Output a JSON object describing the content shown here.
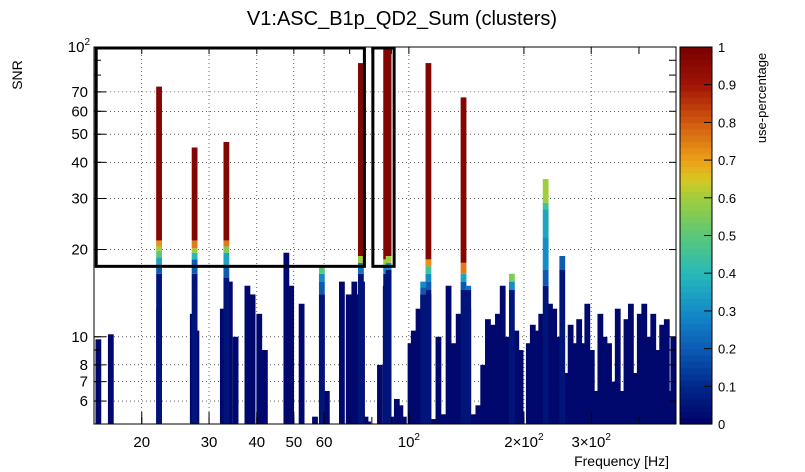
{
  "chart_data": {
    "type": "bar",
    "title": "V1:ASC_B1p_QD2_Sum (clusters)",
    "xlabel": "Frequency [Hz]",
    "ylabel": "SNR",
    "colorbar_label": "use-percentage",
    "x_scale": "log",
    "y_scale": "log",
    "xlim": [
      15,
      500
    ],
    "ylim": [
      5,
      100
    ],
    "grid": true,
    "x_ticks": [
      {
        "value": 20,
        "label": "20"
      },
      {
        "value": 30,
        "label": "30"
      },
      {
        "value": 40,
        "label": "40"
      },
      {
        "value": 50,
        "label": "50"
      },
      {
        "value": 60,
        "label": "60"
      },
      {
        "value": 100,
        "label": "10",
        "exp": "2"
      },
      {
        "value": 200,
        "label": "2×10",
        "exp": "2"
      },
      {
        "value": 300,
        "label": "3×10",
        "exp": "2"
      }
    ],
    "y_ticks": [
      {
        "value": 6,
        "label": "6"
      },
      {
        "value": 7,
        "label": "7"
      },
      {
        "value": 8,
        "label": "8"
      },
      {
        "value": 10,
        "label": "10"
      },
      {
        "value": 20,
        "label": "20"
      },
      {
        "value": 30,
        "label": "30"
      },
      {
        "value": 40,
        "label": "40"
      },
      {
        "value": 50,
        "label": "50"
      },
      {
        "value": 60,
        "label": "60"
      },
      {
        "value": 70,
        "label": "70"
      },
      {
        "value": 100,
        "label": "10",
        "exp": "2"
      }
    ],
    "colorbar": {
      "range": [
        0,
        1
      ],
      "ticks": [
        "0",
        "0.1",
        "0.2",
        "0.3",
        "0.4",
        "0.5",
        "0.6",
        "0.7",
        "0.8",
        "0.9",
        "1"
      ]
    },
    "highlight_boxes": [
      {
        "x": [
          15.2,
          76.5
        ],
        "y": [
          17.5,
          100
        ]
      },
      {
        "x": [
          80.5,
          91.5
        ],
        "y": [
          17.5,
          100
        ]
      }
    ],
    "dark_bars": [
      [
        15.4,
        9.8
      ],
      [
        16.6,
        10.2
      ],
      [
        22.2,
        12.5
      ],
      [
        27.2,
        12.0
      ],
      [
        27.8,
        10.5
      ],
      [
        32.6,
        12.5
      ],
      [
        34.0,
        15.5
      ],
      [
        35.2,
        10.0
      ],
      [
        37.8,
        15.0
      ],
      [
        39.0,
        14.0
      ],
      [
        40.6,
        12.0
      ],
      [
        42.0,
        9.0
      ],
      [
        47.8,
        19.5
      ],
      [
        49.2,
        15.0
      ],
      [
        52.4,
        13.0
      ],
      [
        56.8,
        5.3
      ],
      [
        59.2,
        14.0
      ],
      [
        61.0,
        6.5
      ],
      [
        66.8,
        15.5
      ],
      [
        69.6,
        14.0
      ],
      [
        72.0,
        15.5
      ],
      [
        73.0,
        14.0
      ],
      [
        75.4,
        15.5
      ],
      [
        77.0,
        5.3
      ],
      [
        78.2,
        5.1
      ],
      [
        84.0,
        8.0
      ],
      [
        87.0,
        15.0
      ],
      [
        90.0,
        5.3
      ],
      [
        93.0,
        6.1
      ],
      [
        95.0,
        5.8
      ],
      [
        97.0,
        5.3
      ],
      [
        101.0,
        9.5
      ],
      [
        103.0,
        10.5
      ],
      [
        106.0,
        12.5
      ],
      [
        109.0,
        14.0
      ],
      [
        112.5,
        14.0
      ],
      [
        116.0,
        5.2
      ],
      [
        119.5,
        10.0
      ],
      [
        123.0,
        5.4
      ],
      [
        127.0,
        15.0
      ],
      [
        131.0,
        9.5
      ],
      [
        135.0,
        12.0
      ],
      [
        139.0,
        5.6
      ],
      [
        143.0,
        12.5
      ],
      [
        147.5,
        5.4
      ],
      [
        152.0,
        5.8
      ],
      [
        156.5,
        8.0
      ],
      [
        161.0,
        11.5
      ],
      [
        166.0,
        11.0
      ],
      [
        171.0,
        12.0
      ],
      [
        176.0,
        15.0
      ],
      [
        181.0,
        10.0
      ],
      [
        186.0,
        9.5
      ],
      [
        191.0,
        10.5
      ],
      [
        196.0,
        9.0
      ],
      [
        206.0,
        9.5
      ],
      [
        211.0,
        11.0
      ],
      [
        216.0,
        10.5
      ],
      [
        222.0,
        12.0
      ],
      [
        228.0,
        8.0
      ],
      [
        234.0,
        13.0
      ],
      [
        240.0,
        12.5
      ],
      [
        246.0,
        10.0
      ],
      [
        252.0,
        6.5
      ],
      [
        258.0,
        7.5
      ],
      [
        265.0,
        11.0
      ],
      [
        272.0,
        9.5
      ],
      [
        279.0,
        11.5
      ],
      [
        286.0,
        9.5
      ],
      [
        293.0,
        13.0
      ],
      [
        301.0,
        9.0
      ],
      [
        309.0,
        6.5
      ],
      [
        317.0,
        12.0
      ],
      [
        325.0,
        10.0
      ],
      [
        334.0,
        9.5
      ],
      [
        343.0,
        7.0
      ],
      [
        352.0,
        12.5
      ],
      [
        361.0,
        6.5
      ],
      [
        371.0,
        11.5
      ],
      [
        381.0,
        13.0
      ],
      [
        391.0,
        7.5
      ],
      [
        402.0,
        12.0
      ],
      [
        413.0,
        13.0
      ],
      [
        424.0,
        10.0
      ],
      [
        436.0,
        12.0
      ],
      [
        448.0,
        9.0
      ],
      [
        460.0,
        11.0
      ],
      [
        473.0,
        11.5
      ],
      [
        486.0,
        6.5
      ],
      [
        492.0,
        10.0
      ]
    ],
    "colored_bars": [
      {
        "x": 22.2,
        "segments": [
          [
            5,
            16.5,
            0.05
          ],
          [
            16.5,
            17.5,
            0.2
          ],
          [
            17.5,
            18.8,
            0.35
          ],
          [
            18.8,
            19.8,
            0.5
          ],
          [
            19.8,
            20.5,
            0.6
          ],
          [
            20.5,
            21.5,
            0.72
          ],
          [
            21.5,
            73,
            0.97
          ]
        ]
      },
      {
        "x": 27.5,
        "segments": [
          [
            5,
            16.5,
            0.05
          ],
          [
            16.5,
            18.5,
            0.2
          ],
          [
            18.5,
            19.5,
            0.4
          ],
          [
            19.5,
            20.2,
            0.6
          ],
          [
            20.2,
            21.5,
            0.75
          ],
          [
            21.5,
            45,
            0.97
          ]
        ]
      },
      {
        "x": 33.3,
        "segments": [
          [
            5,
            16.0,
            0.05
          ],
          [
            16.0,
            17.5,
            0.2
          ],
          [
            17.5,
            19.5,
            0.35
          ],
          [
            19.5,
            20.5,
            0.55
          ],
          [
            20.5,
            21.5,
            0.75
          ],
          [
            21.5,
            47,
            0.97
          ]
        ]
      },
      {
        "x": 59.2,
        "segments": [
          [
            5,
            14.0,
            0.05
          ],
          [
            14.0,
            15.5,
            0.2
          ],
          [
            15.5,
            16.5,
            0.3
          ],
          [
            16.5,
            17.5,
            0.5
          ]
        ]
      },
      {
        "x": 74.9,
        "segments": [
          [
            5,
            16.5,
            0.05
          ],
          [
            16.5,
            18.0,
            0.25
          ],
          [
            18.0,
            19.0,
            0.6
          ],
          [
            19.0,
            88,
            0.97
          ]
        ]
      },
      {
        "x": 87.2,
        "segments": [
          [
            5,
            16.5,
            0.05
          ],
          [
            16.5,
            17.5,
            0.3
          ],
          [
            17.5,
            18.5,
            0.6
          ],
          [
            18.5,
            100,
            0.97
          ]
        ]
      },
      {
        "x": 88.5,
        "segments": [
          [
            5,
            17.0,
            0.05
          ],
          [
            17.0,
            18.0,
            0.3
          ],
          [
            18.0,
            19.0,
            0.6
          ],
          [
            19.0,
            100,
            0.97
          ]
        ]
      },
      {
        "x": 112.5,
        "segments": [
          [
            5,
            14.5,
            0.05
          ],
          [
            14.5,
            15.5,
            0.2
          ],
          [
            15.5,
            16.5,
            0.3
          ],
          [
            16.5,
            17.5,
            0.45
          ],
          [
            17.5,
            18.5,
            0.72
          ],
          [
            18.5,
            88,
            0.97
          ]
        ]
      },
      {
        "x": 109.0,
        "segments": [
          [
            5,
            14.0,
            0.05
          ],
          [
            14.0,
            14.8,
            0.2
          ],
          [
            14.8,
            15.5,
            0.3
          ]
        ]
      },
      {
        "x": 139.0,
        "segments": [
          [
            5,
            14.5,
            0.05
          ],
          [
            14.5,
            15.5,
            0.2
          ],
          [
            15.5,
            16.5,
            0.35
          ],
          [
            16.5,
            18.0,
            0.75
          ],
          [
            18.0,
            67,
            0.97
          ]
        ]
      },
      {
        "x": 143.0,
        "segments": [
          [
            5,
            14.5,
            0.05
          ],
          [
            14.5,
            15.0,
            0.25
          ]
        ]
      },
      {
        "x": 186.0,
        "segments": [
          [
            5,
            14.5,
            0.05
          ],
          [
            14.5,
            15.5,
            0.3
          ],
          [
            15.5,
            16.5,
            0.55
          ]
        ]
      },
      {
        "x": 228.0,
        "segments": [
          [
            5,
            15.0,
            0.05
          ],
          [
            15.0,
            17.0,
            0.2
          ],
          [
            17.0,
            22.0,
            0.3
          ],
          [
            22.0,
            27.5,
            0.35
          ],
          [
            27.5,
            29.0,
            0.45
          ],
          [
            29.0,
            35,
            0.6
          ]
        ]
      },
      {
        "x": 252.0,
        "segments": [
          [
            5,
            17.0,
            0.05
          ],
          [
            17.0,
            19.0,
            0.2
          ]
        ]
      }
    ]
  }
}
